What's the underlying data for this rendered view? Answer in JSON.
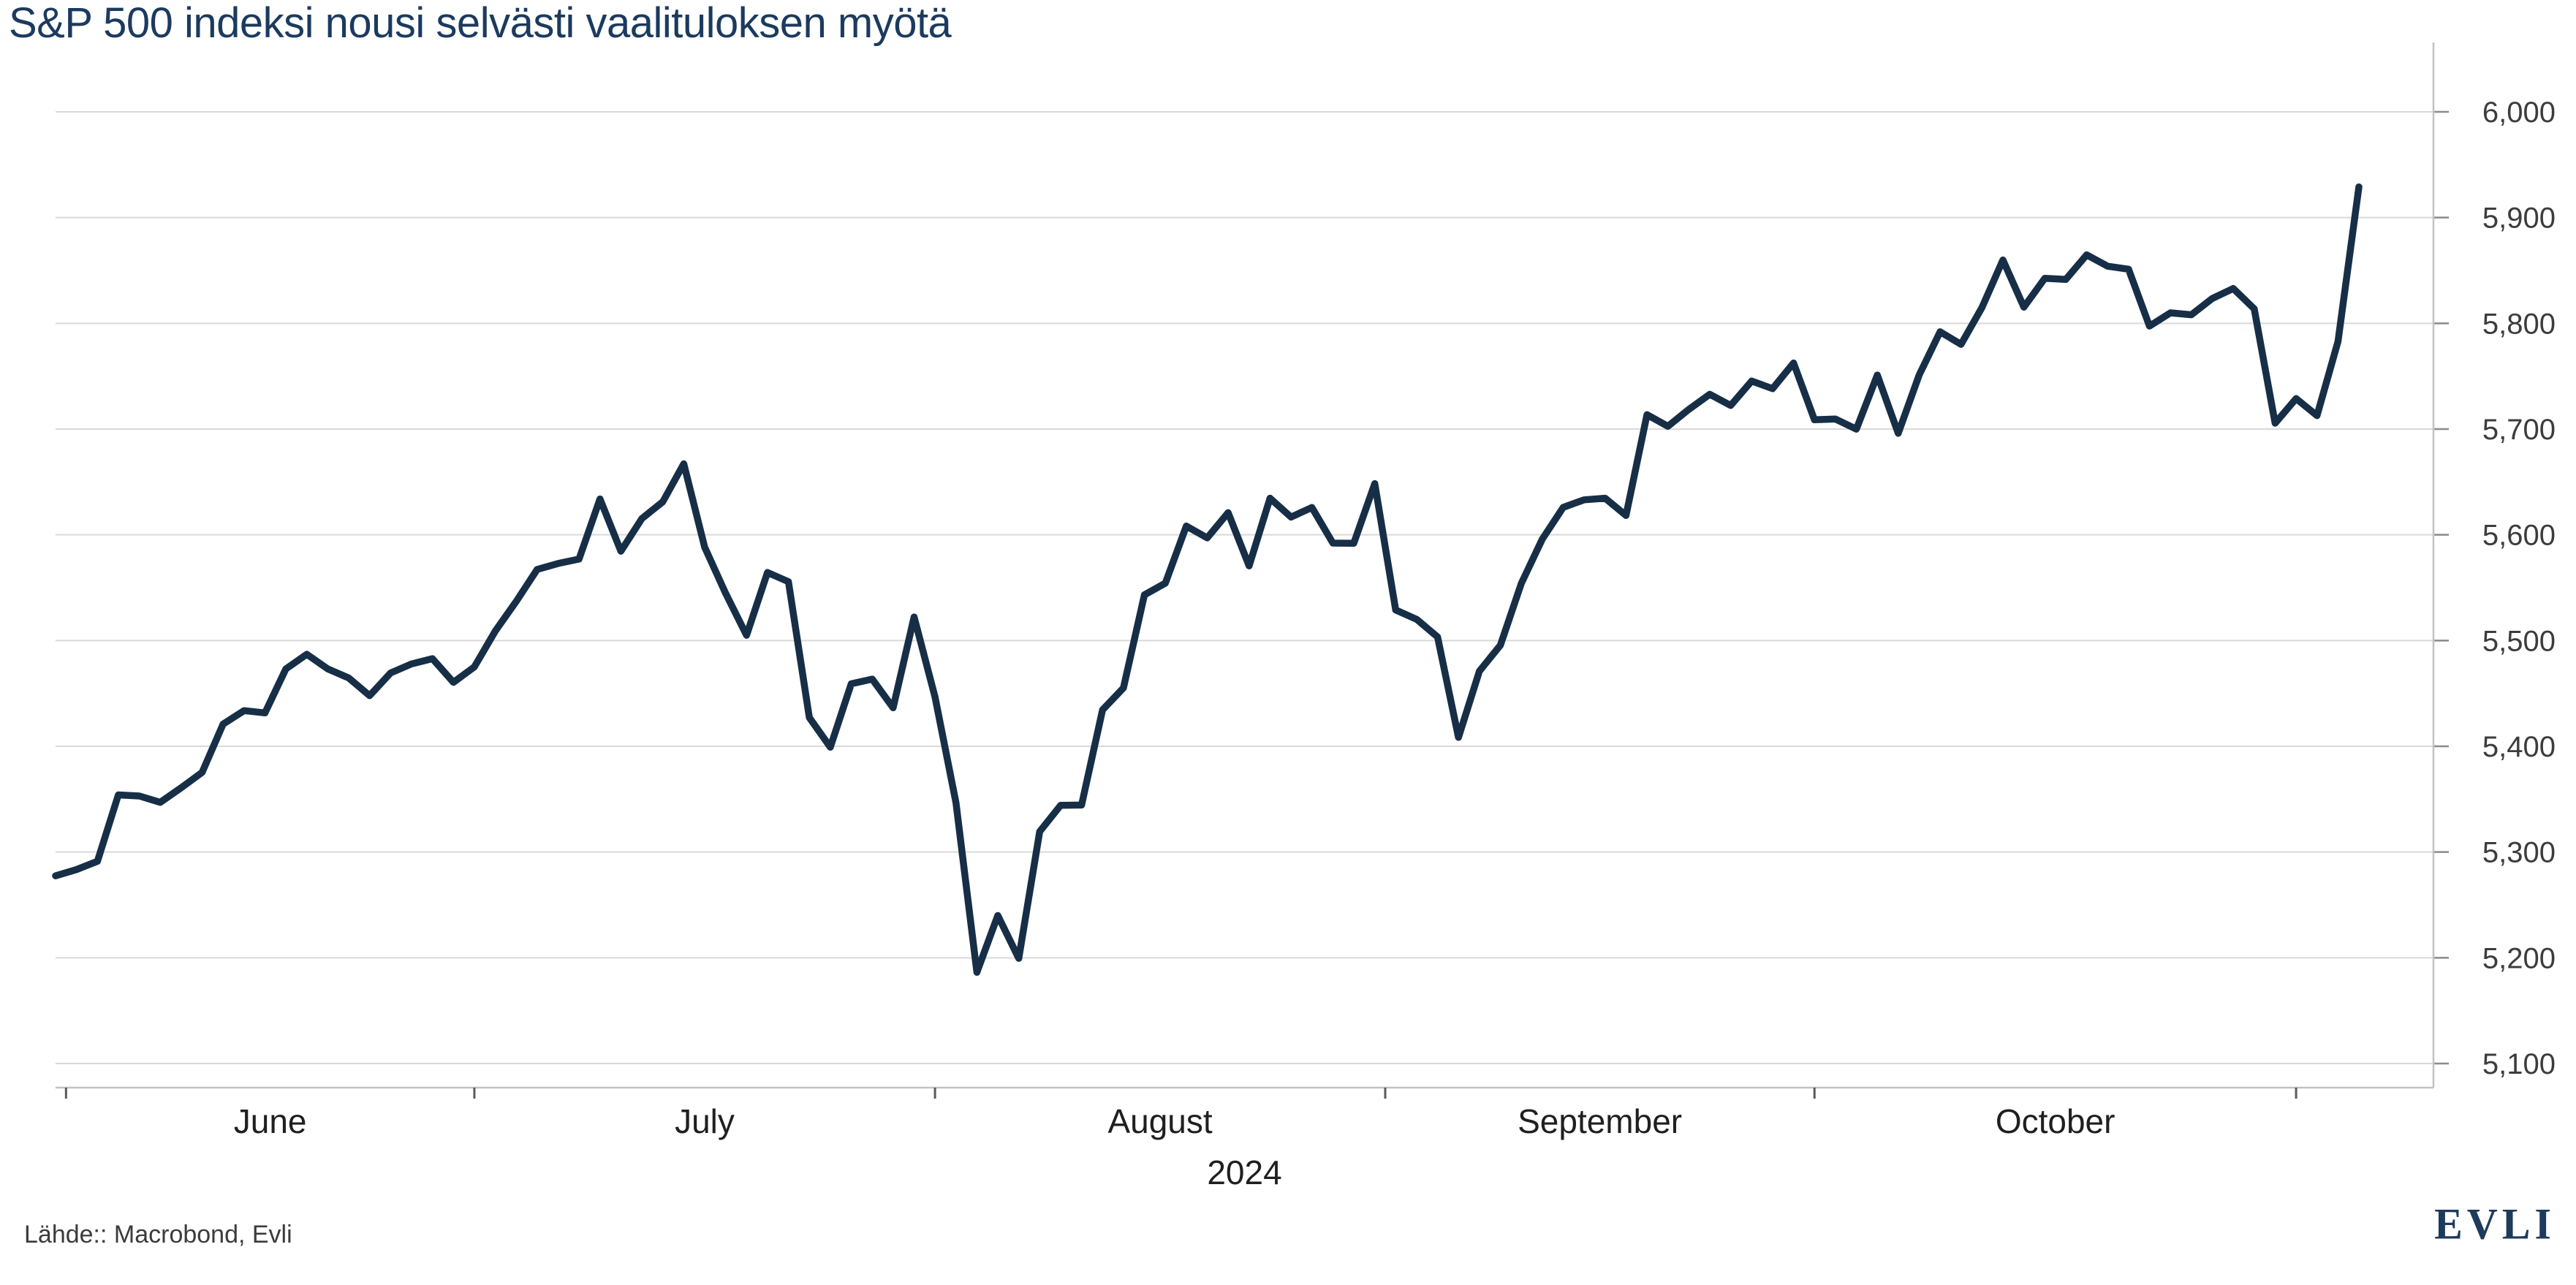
{
  "footer": {
    "source": "Lähde:: Macrobond, Evli",
    "logo_text": "EVLI"
  },
  "colors": {
    "line": "#172e47",
    "title": "#1b3a5e",
    "gridline": "#d9d9d9",
    "axis_line": "#c2c2c2",
    "right_tick": "#8a8a8a",
    "bottom_tick": "#5a5a5a",
    "y_tick_label": "#3c3c3c",
    "month_label": "#1f1f1f",
    "source_text": "#3b3b3b",
    "logo": "#1e3a5c"
  },
  "chart_data": {
    "type": "line",
    "title": "S&P 500 indeksi nousi selvästi vaalituloksen myötä",
    "xlabel_year": "2024",
    "ylim": [
      5100,
      6000
    ],
    "grid": "horizontal",
    "legend_position": "none",
    "y_axis_side": "right",
    "y_ticks": [
      {
        "value": 5100,
        "label": "5,100"
      },
      {
        "value": 5200,
        "label": "5,200"
      },
      {
        "value": 5300,
        "label": "5,300"
      },
      {
        "value": 5400,
        "label": "5,400"
      },
      {
        "value": 5500,
        "label": "5,500"
      },
      {
        "value": 5600,
        "label": "5,600"
      },
      {
        "value": 5700,
        "label": "5,700"
      },
      {
        "value": 5800,
        "label": "5,800"
      },
      {
        "value": 5900,
        "label": "5,900"
      },
      {
        "value": 6000,
        "label": "6,000"
      }
    ],
    "x_month_ticks": [
      {
        "label": "June",
        "boundary_index": 0.5
      },
      {
        "label": "July",
        "boundary_index": 20
      },
      {
        "label": "August",
        "boundary_index": 42
      },
      {
        "label": "September",
        "boundary_index": 63.5
      },
      {
        "label": "October",
        "boundary_index": 84
      },
      {
        "label": "",
        "boundary_index": 107
      }
    ],
    "series": [
      {
        "name": "S&P 500",
        "color": "#172e47",
        "dates": [
          "2024-05-31",
          "2024-06-03",
          "2024-06-04",
          "2024-06-05",
          "2024-06-06",
          "2024-06-07",
          "2024-06-10",
          "2024-06-11",
          "2024-06-12",
          "2024-06-13",
          "2024-06-14",
          "2024-06-17",
          "2024-06-18",
          "2024-06-20",
          "2024-06-21",
          "2024-06-24",
          "2024-06-25",
          "2024-06-26",
          "2024-06-27",
          "2024-06-28",
          "2024-07-01",
          "2024-07-02",
          "2024-07-03",
          "2024-07-05",
          "2024-07-08",
          "2024-07-09",
          "2024-07-10",
          "2024-07-11",
          "2024-07-12",
          "2024-07-15",
          "2024-07-16",
          "2024-07-17",
          "2024-07-18",
          "2024-07-19",
          "2024-07-22",
          "2024-07-23",
          "2024-07-24",
          "2024-07-25",
          "2024-07-26",
          "2024-07-29",
          "2024-07-30",
          "2024-07-31",
          "2024-08-01",
          "2024-08-02",
          "2024-08-05",
          "2024-08-06",
          "2024-08-07",
          "2024-08-08",
          "2024-08-09",
          "2024-08-12",
          "2024-08-13",
          "2024-08-14",
          "2024-08-15",
          "2024-08-16",
          "2024-08-19",
          "2024-08-20",
          "2024-08-21",
          "2024-08-22",
          "2024-08-23",
          "2024-08-26",
          "2024-08-27",
          "2024-08-28",
          "2024-08-29",
          "2024-08-30",
          "2024-09-03",
          "2024-09-04",
          "2024-09-05",
          "2024-09-06",
          "2024-09-09",
          "2024-09-10",
          "2024-09-11",
          "2024-09-12",
          "2024-09-13",
          "2024-09-16",
          "2024-09-17",
          "2024-09-18",
          "2024-09-19",
          "2024-09-20",
          "2024-09-23",
          "2024-09-24",
          "2024-09-25",
          "2024-09-26",
          "2024-09-27",
          "2024-09-30",
          "2024-10-01",
          "2024-10-02",
          "2024-10-03",
          "2024-10-04",
          "2024-10-07",
          "2024-10-08",
          "2024-10-09",
          "2024-10-10",
          "2024-10-11",
          "2024-10-14",
          "2024-10-15",
          "2024-10-16",
          "2024-10-17",
          "2024-10-18",
          "2024-10-21",
          "2024-10-22",
          "2024-10-23",
          "2024-10-24",
          "2024-10-25",
          "2024-10-28",
          "2024-10-29",
          "2024-10-30",
          "2024-10-31",
          "2024-11-01",
          "2024-11-04",
          "2024-11-05",
          "2024-11-06"
        ],
        "values": [
          5277.5,
          5283.4,
          5291.3,
          5354.0,
          5353.0,
          5347.0,
          5360.8,
          5375.3,
          5421.0,
          5433.7,
          5431.6,
          5473.2,
          5487.0,
          5473.2,
          5464.6,
          5447.9,
          5469.3,
          5477.9,
          5482.9,
          5460.5,
          5475.1,
          5509.0,
          5537.0,
          5567.2,
          5572.9,
          5577.0,
          5633.9,
          5584.5,
          5615.4,
          5631.2,
          5667.2,
          5588.3,
          5544.6,
          5505.0,
          5564.4,
          5555.7,
          5427.1,
          5399.2,
          5459.1,
          5463.5,
          5436.4,
          5522.3,
          5446.7,
          5346.6,
          5186.3,
          5240.0,
          5199.5,
          5319.3,
          5344.2,
          5344.4,
          5434.4,
          5455.2,
          5543.2,
          5554.3,
          5608.3,
          5597.1,
          5620.9,
          5570.6,
          5634.6,
          5616.8,
          5625.8,
          5592.2,
          5592.0,
          5648.4,
          5528.9,
          5520.1,
          5503.4,
          5408.4,
          5471.1,
          5495.5,
          5554.1,
          5595.8,
          5626.0,
          5633.1,
          5634.6,
          5618.3,
          5713.6,
          5702.6,
          5718.6,
          5732.9,
          5722.3,
          5745.4,
          5738.2,
          5762.5,
          5708.8,
          5709.5,
          5699.9,
          5751.1,
          5696.0,
          5751.1,
          5792.0,
          5780.1,
          5815.0,
          5859.9,
          5815.3,
          5842.5,
          5841.5,
          5864.7,
          5854.0,
          5851.2,
          5797.4,
          5809.9,
          5808.1,
          5823.5,
          5832.9,
          5813.7,
          5705.5,
          5728.8,
          5712.7,
          5782.8,
          5929.0
        ]
      }
    ]
  }
}
